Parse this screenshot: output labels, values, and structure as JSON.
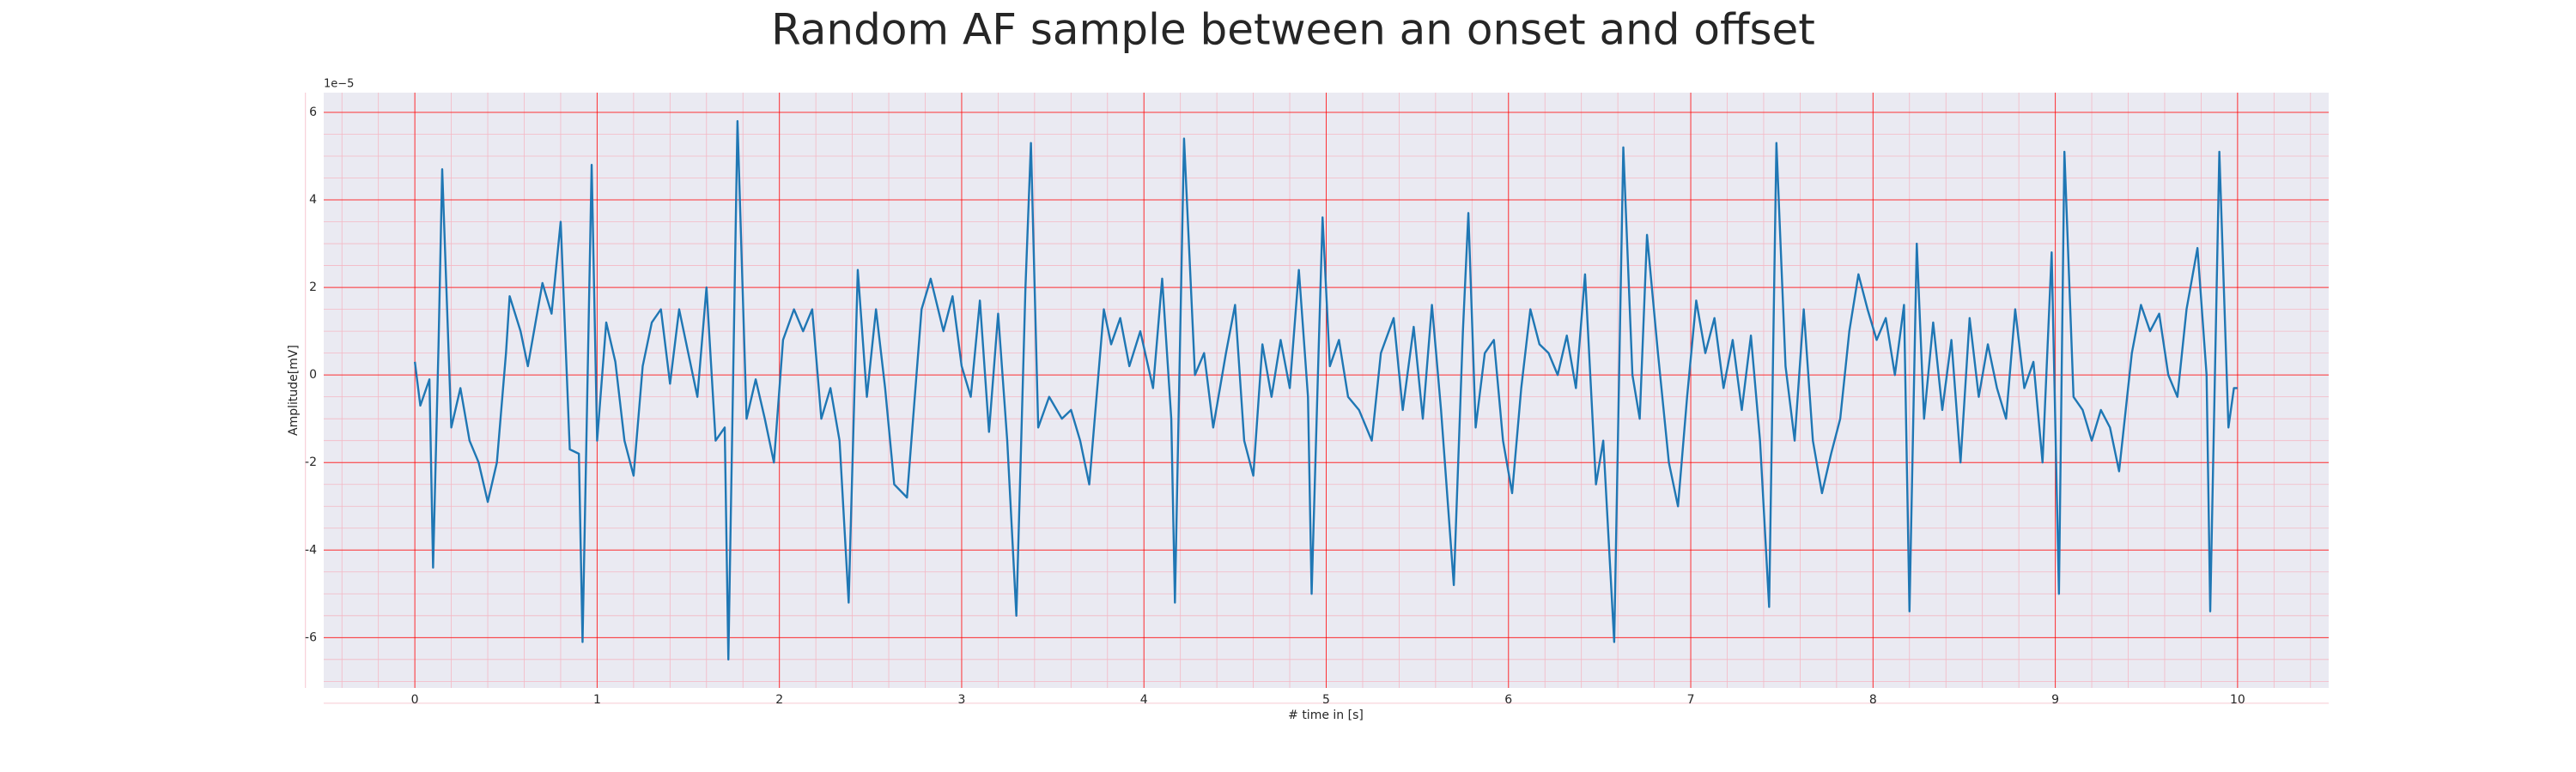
{
  "chart_data": {
    "type": "line",
    "title": "Random AF sample between an onset and offset",
    "xlabel": "# time in [s]",
    "ylabel": "Amplitude[mV]",
    "y_offset_label": "1e−5",
    "color": "#1f77b4",
    "grid": true,
    "minor_grid": true,
    "xlim": [
      -0.5,
      10.5
    ],
    "ylim": [
      -7.15,
      6.45
    ],
    "xticks": [
      0,
      1,
      2,
      3,
      4,
      5,
      6,
      7,
      8,
      9,
      10
    ],
    "yticks": [
      -6,
      -4,
      -2,
      0,
      2,
      4,
      6
    ],
    "x": [
      0,
      0.03,
      0.08,
      0.1,
      0.13,
      0.15,
      0.2,
      0.25,
      0.3,
      0.35,
      0.4,
      0.45,
      0.5,
      0.52,
      0.58,
      0.62,
      0.7,
      0.75,
      0.8,
      0.85,
      0.9,
      0.92,
      0.97,
      1.0,
      1.05,
      1.1,
      1.15,
      1.2,
      1.25,
      1.3,
      1.35,
      1.4,
      1.45,
      1.5,
      1.55,
      1.6,
      1.65,
      1.7,
      1.72,
      1.77,
      1.82,
      1.87,
      1.92,
      1.97,
      2.02,
      2.08,
      2.13,
      2.18,
      2.23,
      2.28,
      2.33,
      2.38,
      2.43,
      2.48,
      2.53,
      2.58,
      2.63,
      2.7,
      2.78,
      2.83,
      2.9,
      2.95,
      3.0,
      3.05,
      3.1,
      3.15,
      3.2,
      3.25,
      3.3,
      3.35,
      3.38,
      3.42,
      3.48,
      3.55,
      3.6,
      3.65,
      3.7,
      3.78,
      3.82,
      3.87,
      3.92,
      3.98,
      4.05,
      4.1,
      4.15,
      4.17,
      4.22,
      4.28,
      4.33,
      4.38,
      4.45,
      4.5,
      4.55,
      4.6,
      4.65,
      4.7,
      4.75,
      4.8,
      4.85,
      4.9,
      4.92,
      4.96,
      4.98,
      5.02,
      5.07,
      5.12,
      5.18,
      5.25,
      5.3,
      5.37,
      5.42,
      5.48,
      5.53,
      5.58,
      5.63,
      5.7,
      5.75,
      5.78,
      5.82,
      5.87,
      5.92,
      5.97,
      6.02,
      6.07,
      6.12,
      6.17,
      6.22,
      6.27,
      6.32,
      6.37,
      6.42,
      6.48,
      6.52,
      6.58,
      6.63,
      6.68,
      6.72,
      6.76,
      6.82,
      6.88,
      6.93,
      6.98,
      7.03,
      7.08,
      7.13,
      7.18,
      7.23,
      7.28,
      7.33,
      7.38,
      7.43,
      7.47,
      7.52,
      7.57,
      7.62,
      7.67,
      7.72,
      7.77,
      7.82,
      7.87,
      7.92,
      7.97,
      8.02,
      8.07,
      8.12,
      8.17,
      8.2,
      8.24,
      8.28,
      8.33,
      8.38,
      8.43,
      8.48,
      8.53,
      8.58,
      8.63,
      8.68,
      8.73,
      8.78,
      8.83,
      8.88,
      8.93,
      8.98,
      9.02,
      9.05,
      9.1,
      9.15,
      9.2,
      9.25,
      9.3,
      9.35,
      9.42,
      9.47,
      9.52,
      9.57,
      9.62,
      9.67,
      9.72,
      9.78,
      9.83,
      9.85,
      9.9,
      9.95,
      9.98,
      10.0
    ],
    "values": [
      0.3,
      -0.7,
      -0.1,
      -4.4,
      0.7,
      4.7,
      -1.2,
      -0.3,
      -1.5,
      -2,
      -2.9,
      -2,
      0.5,
      1.8,
      1.0,
      0.2,
      2.1,
      1.4,
      3.5,
      -1.7,
      -1.8,
      -6.1,
      4.8,
      -1.5,
      1.2,
      0.3,
      -1.5,
      -2.3,
      0.2,
      1.2,
      1.5,
      -0.2,
      1.5,
      0.5,
      -0.5,
      2.0,
      -1.5,
      -1.2,
      -6.5,
      5.8,
      -1.0,
      -0.1,
      -1.0,
      -2.0,
      0.8,
      1.5,
      1.0,
      1.5,
      -1.0,
      -0.3,
      -1.5,
      -5.2,
      2.4,
      -0.5,
      1.5,
      -0.3,
      -2.5,
      -2.8,
      1.5,
      2.2,
      1.0,
      1.8,
      0.2,
      -0.5,
      1.7,
      -1.3,
      1.4,
      -1.5,
      -5.5,
      2.0,
      5.3,
      -1.2,
      -0.5,
      -1.0,
      -0.8,
      -1.5,
      -2.5,
      1.5,
      0.7,
      1.3,
      0.2,
      1.0,
      -0.3,
      2.2,
      -1.0,
      -5.2,
      5.4,
      0.0,
      0.5,
      -1.2,
      0.5,
      1.6,
      -1.5,
      -2.3,
      0.7,
      -0.5,
      0.8,
      -0.3,
      2.4,
      -0.5,
      -5.0,
      0.8,
      3.6,
      0.2,
      0.8,
      -0.5,
      -0.8,
      -1.5,
      0.5,
      1.3,
      -0.8,
      1.1,
      -1.0,
      1.6,
      -0.8,
      -4.8,
      1.0,
      3.7,
      -1.2,
      0.5,
      0.8,
      -1.5,
      -2.7,
      -0.3,
      1.5,
      0.7,
      0.5,
      0.0,
      0.9,
      -0.3,
      2.3,
      -2.5,
      -1.5,
      -6.1,
      5.2,
      0.0,
      -1.0,
      3.2,
      0.5,
      -2.0,
      -3.0,
      -0.5,
      1.7,
      0.5,
      1.3,
      -0.3,
      0.8,
      -0.8,
      0.9,
      -1.5,
      -5.3,
      5.3,
      0.2,
      -1.5,
      1.5,
      -1.5,
      -2.7,
      -1.8,
      -1.0,
      1.0,
      2.3,
      1.5,
      0.8,
      1.3,
      0.0,
      1.6,
      -5.4,
      3.0,
      -1.0,
      1.2,
      -0.8,
      0.8,
      -2.0,
      1.3,
      -0.5,
      0.7,
      -0.3,
      -1.0,
      1.5,
      -0.3,
      0.3,
      -2.0,
      2.8,
      -5.0,
      5.1,
      -0.5,
      -0.8,
      -1.5,
      -0.8,
      -1.2,
      -2.2,
      0.5,
      1.6,
      1.0,
      1.4,
      0.0,
      -0.5,
      1.5,
      2.9,
      0.0,
      -5.4,
      5.1,
      -1.2,
      -0.3,
      -0.3
    ]
  }
}
